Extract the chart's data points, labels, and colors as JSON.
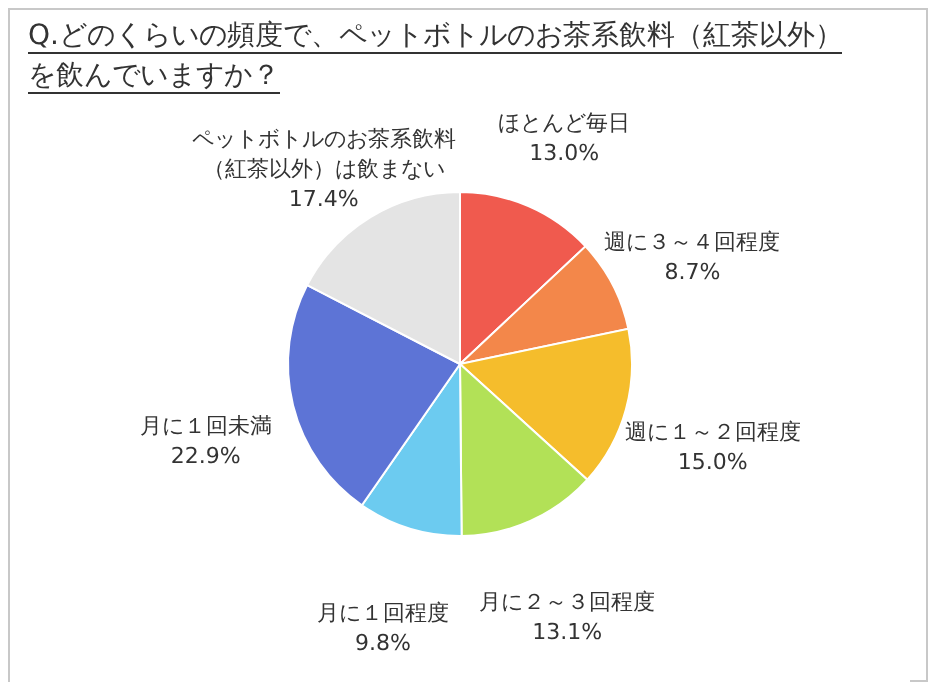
{
  "chart_data": {
    "type": "pie",
    "title": "Q.どのくらいの頻度で、ペットボトルのお茶系飲料（紅茶以外）を飲んでいますか？",
    "categories": [
      "ほとんど毎日",
      "週に３～４回程度",
      "週に１～２回程度",
      "月に２～３回程度",
      "月に１回程度",
      "月に１回未満",
      "ペットボトルのお茶系飲料（紅茶以外）は飲まない"
    ],
    "values": [
      13.0,
      8.7,
      15.0,
      13.1,
      9.8,
      22.9,
      17.4
    ],
    "value_labels": [
      "13.0%",
      "8.7%",
      "15.0%",
      "13.1%",
      "9.8%",
      "22.9%",
      "17.4%"
    ],
    "colors": [
      "#f05a4e",
      "#f3874a",
      "#f5bd2c",
      "#b2e157",
      "#6ccbf0",
      "#5d74d6",
      "#e4e4e4"
    ]
  }
}
